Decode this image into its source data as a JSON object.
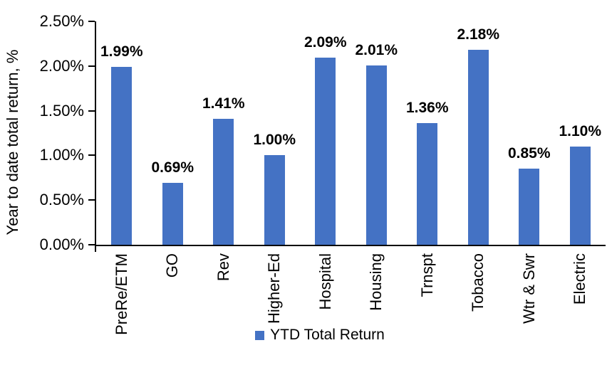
{
  "chart_data": {
    "type": "bar",
    "title": "",
    "categories": [
      "PreRe/ETM",
      "GO",
      "Rev",
      "Higher-Ed",
      "Hospital",
      "Housing",
      "Trnspt",
      "Tobacco",
      "Wtr & Swr",
      "Electric"
    ],
    "values": [
      1.99,
      0.69,
      1.41,
      1.0,
      2.09,
      2.01,
      1.36,
      2.18,
      0.85,
      1.1
    ],
    "value_labels": [
      "1.99%",
      "0.69%",
      "1.41%",
      "1.00%",
      "2.09%",
      "2.01%",
      "1.36%",
      "2.18%",
      "0.85%",
      "1.10%"
    ],
    "xlabel": "",
    "ylabel": "Year to date total return, %",
    "ylim": [
      0,
      2.5
    ],
    "ytick_values": [
      0,
      0.5,
      1.0,
      1.5,
      2.0,
      2.5
    ],
    "ytick_labels": [
      "0.00%",
      "0.50%",
      "1.00%",
      "1.50%",
      "2.00%",
      "2.50%"
    ],
    "legend": [
      "YTD Total Return"
    ],
    "legend_position": "bottom",
    "grid": false,
    "bar_color": "#4472C4",
    "axis_color": "#000000",
    "label_color": "#000000"
  }
}
